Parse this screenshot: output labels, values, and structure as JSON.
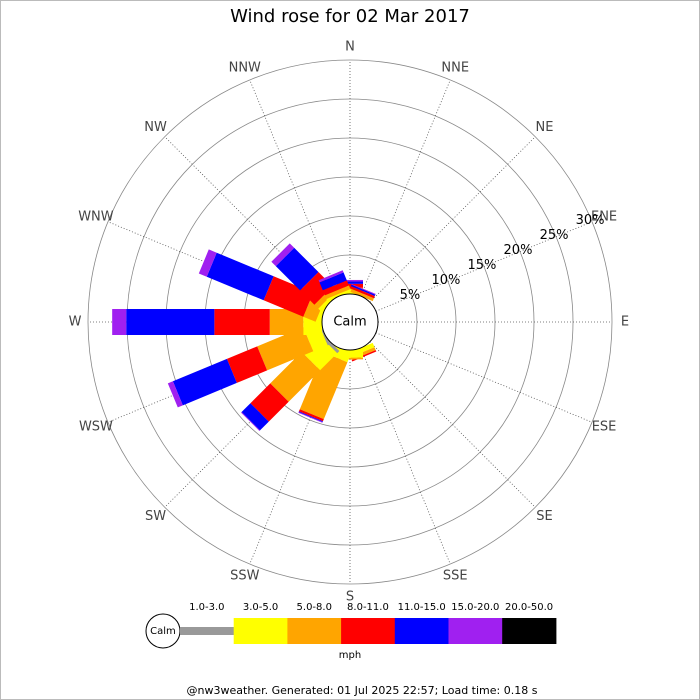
{
  "chart_data": {
    "type": "rose",
    "title": "Wind rose for 02 Mar 2017",
    "categories": [
      "N",
      "NNE",
      "NE",
      "ENE",
      "E",
      "ESE",
      "SE",
      "SSE",
      "S",
      "SSW",
      "SW",
      "WSW",
      "W",
      "WNW",
      "NW",
      "NNW"
    ],
    "calm_label": "Calm",
    "unit": "mph",
    "footer": "@nw3weather. Generated: 01 Jul 2025 22:57; Load time: 0.18 s",
    "rlim": [
      0,
      30
    ],
    "rticks": [
      {
        "value": 5,
        "label": "5%"
      },
      {
        "value": 10,
        "label": "10%"
      },
      {
        "value": 15,
        "label": "15%"
      },
      {
        "value": 20,
        "label": "20%"
      },
      {
        "value": 25,
        "label": "25%"
      },
      {
        "value": 30,
        "label": "30%"
      }
    ],
    "series": [
      {
        "name": "1.0-3.0",
        "color": "#999999",
        "values": [
          0,
          0,
          0,
          0,
          0,
          0,
          0,
          0,
          0,
          0,
          0.4,
          0.2,
          0,
          0,
          0,
          0
        ]
      },
      {
        "name": "3.0-5.0",
        "color": "#ffff00",
        "values": [
          0.3,
          0,
          0,
          0,
          0,
          0,
          0,
          0.6,
          1.0,
          1.3,
          3.1,
          2.0,
          2.4,
          0.5,
          0.5,
          0.3
        ]
      },
      {
        "name": "5.0-8.0",
        "color": "#ffa500",
        "values": [
          0.5,
          0.4,
          0,
          0,
          0,
          0,
          0,
          0.4,
          0.2,
          7.9,
          5.7,
          6.4,
          4.3,
          1.7,
          0.7,
          0.5
        ]
      },
      {
        "name": "8.0-11.0",
        "color": "#ff0000",
        "values": [
          0.5,
          0.3,
          0,
          0,
          0,
          0,
          0,
          0.2,
          0,
          0.3,
          3.6,
          4.2,
          7.1,
          5.5,
          2.6,
          0.7
        ]
      },
      {
        "name": "11.0-15.0",
        "color": "#0000ff",
        "values": [
          0.3,
          0.2,
          0,
          0,
          0,
          0,
          0,
          0,
          0,
          0.1,
          1.6,
          7.5,
          11.3,
          7.9,
          4.4,
          1.1
        ]
      },
      {
        "name": "15.0-20.0",
        "color": "#a020f0",
        "values": [
          0.2,
          0.1,
          0,
          0,
          0,
          0,
          0,
          0,
          0,
          0.1,
          0.1,
          0.7,
          1.8,
          1.1,
          0.8,
          0.3
        ]
      },
      {
        "name": "20.0-50.0",
        "color": "#000000",
        "values": [
          0,
          0,
          0,
          0,
          0,
          0,
          0,
          0,
          0,
          0,
          0,
          0,
          0,
          0,
          0,
          0
        ]
      }
    ]
  }
}
